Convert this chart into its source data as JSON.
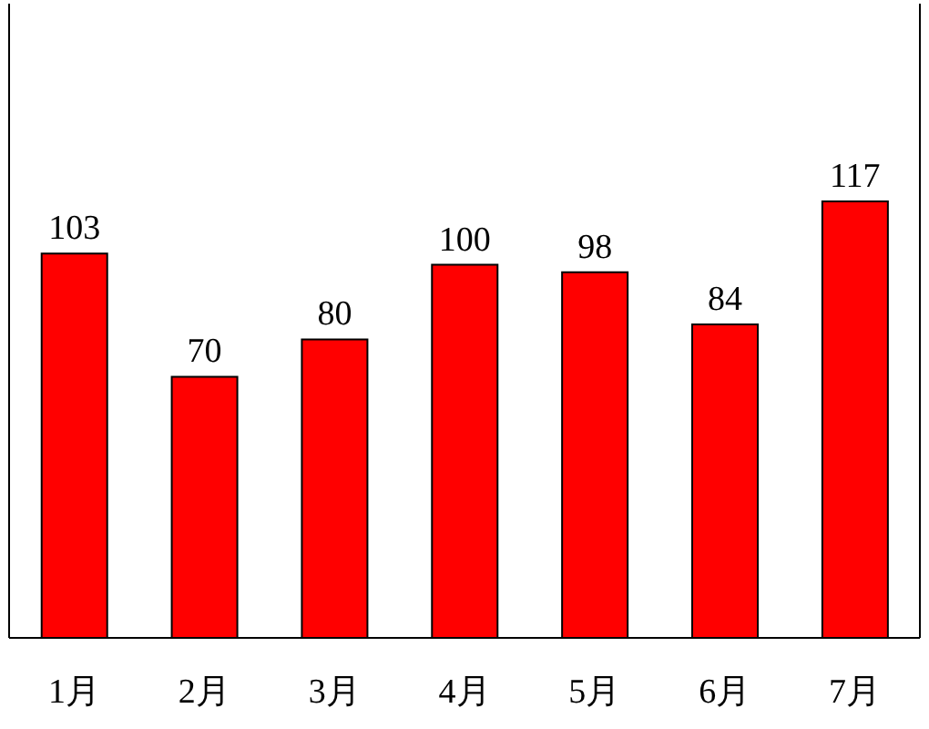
{
  "chart_data": {
    "type": "bar",
    "categories": [
      "1月",
      "2月",
      "3月",
      "4月",
      "5月",
      "6月",
      "7月"
    ],
    "values": [
      103,
      70,
      80,
      100,
      98,
      84,
      117
    ],
    "color": "#ff0000",
    "ylim": [
      0,
      170
    ],
    "data_labels": true,
    "grid": false,
    "legend": false
  }
}
